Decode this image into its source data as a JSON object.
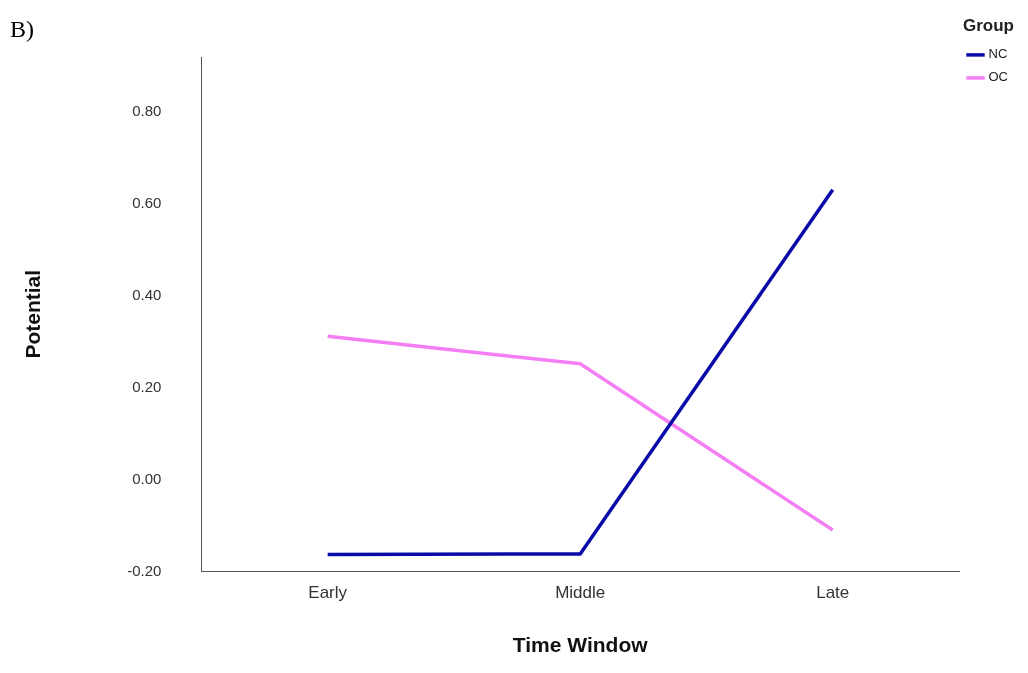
{
  "chart_data": {
    "type": "line",
    "xlabel": "Time Window",
    "ylabel": "Potential",
    "legend_title": "Group",
    "annotations": [
      "B)"
    ],
    "categories": [
      "Early",
      "Middle",
      "Late"
    ],
    "series": [
      {
        "name": "NC",
        "color": "#0a0aa8",
        "values": [
          -0.163,
          -0.162,
          0.631
        ]
      },
      {
        "name": "OC",
        "color": "#f47ff4",
        "values": [
          0.312,
          0.252,
          -0.11
        ]
      }
    ],
    "ylim": [
      -0.2,
      0.92
    ],
    "yticks": [
      {
        "value": -0.2,
        "label": "-0.20"
      },
      {
        "value": 0,
        "label": "0.00"
      },
      {
        "value": 0.2,
        "label": "0.20"
      },
      {
        "value": 0.4,
        "label": "0.40"
      },
      {
        "value": 0.6,
        "label": "0.60"
      },
      {
        "value": 0.8,
        "label": "0.80"
      }
    ],
    "grid": false,
    "legend": "top right",
    "marker": "none",
    "line_style": "solid"
  }
}
